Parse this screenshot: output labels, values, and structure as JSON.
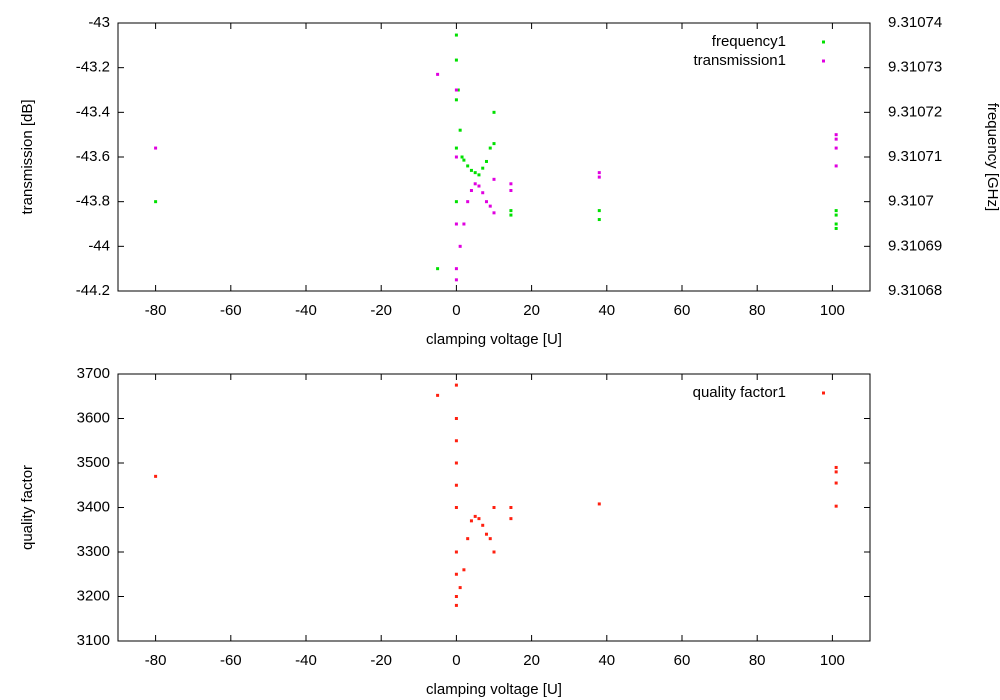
{
  "chart_data": [
    {
      "type": "scatter",
      "xlabel": "clamping voltage [U]",
      "ylabel": "transmission [dB]",
      "y2label": "frequency [GHz]",
      "xlim": [
        -90,
        110
      ],
      "xticks": [
        -80,
        -60,
        -40,
        -20,
        0,
        20,
        40,
        60,
        80,
        100
      ],
      "ylim": [
        -44.2,
        -43
      ],
      "yticks": [
        -44.2,
        -44,
        -43.8,
        -43.6,
        -43.4,
        -43.2,
        -43
      ],
      "y2lim": [
        9.31068,
        9.31074
      ],
      "y2ticks": [
        9.31068,
        9.31069,
        9.3107,
        9.31071,
        9.31072,
        9.31073,
        9.31074
      ],
      "legend": "upper right",
      "series": [
        {
          "name": "frequency1",
          "color": "#00e000",
          "axis": "y2",
          "x": [
            -80,
            -5,
            0,
            0,
            0,
            0,
            0,
            0.5,
            1,
            1.5,
            2,
            3,
            4,
            5,
            6,
            7,
            8,
            9,
            10,
            10,
            14.5,
            14.5,
            38,
            38,
            101,
            101,
            101,
            101
          ],
          "values": [
            9.3107,
            9.310685,
            9.3107373,
            9.3107317,
            9.3107228,
            9.310712,
            9.3107,
            9.310725,
            9.310716,
            9.31071,
            9.3107093,
            9.310708,
            9.310707,
            9.3107065,
            9.310706,
            9.3107075,
            9.310709,
            9.310712,
            9.31072,
            9.310713,
            9.310698,
            9.310697,
            9.310698,
            9.310696,
            9.310698,
            9.310697,
            9.310695,
            9.310694
          ]
        },
        {
          "name": "transmission1",
          "color": "#e000e0",
          "axis": "y",
          "x": [
            -80,
            -5,
            0,
            0,
            0,
            0,
            0,
            1,
            2,
            3,
            4,
            5,
            6,
            7,
            8,
            9,
            10,
            10,
            14.5,
            14.5,
            38,
            38,
            101,
            101,
            101,
            101
          ],
          "values": [
            -43.56,
            -43.23,
            -44.15,
            -44.1,
            -43.9,
            -43.6,
            -43.3,
            -44.0,
            -43.9,
            -43.8,
            -43.75,
            -43.72,
            -43.73,
            -43.76,
            -43.8,
            -43.82,
            -43.85,
            -43.7,
            -43.72,
            -43.75,
            -43.67,
            -43.69,
            -43.5,
            -43.52,
            -43.56,
            -43.64
          ]
        }
      ]
    },
    {
      "type": "scatter",
      "xlabel": "clamping voltage [U]",
      "ylabel": "quality factor",
      "xlim": [
        -90,
        110
      ],
      "xticks": [
        -80,
        -60,
        -40,
        -20,
        0,
        20,
        40,
        60,
        80,
        100
      ],
      "ylim": [
        3100,
        3700
      ],
      "yticks": [
        3100,
        3200,
        3300,
        3400,
        3500,
        3600,
        3700
      ],
      "legend": "upper right",
      "series": [
        {
          "name": "quality factor1",
          "color": "#ff2010",
          "axis": "y",
          "x": [
            -80,
            -5,
            0,
            0,
            0,
            0,
            0,
            0,
            0,
            0,
            0,
            0,
            1,
            2,
            3,
            4,
            5,
            6,
            7,
            8,
            9,
            10,
            10,
            14.5,
            14.5,
            38,
            101,
            101,
            101,
            101
          ],
          "values": [
            3470,
            3652,
            3675,
            3600,
            3550,
            3500,
            3450,
            3400,
            3300,
            3250,
            3200,
            3180,
            3220,
            3260,
            3330,
            3370,
            3380,
            3375,
            3360,
            3340,
            3330,
            3400,
            3300,
            3400,
            3375,
            3408,
            3490,
            3480,
            3455,
            3403
          ]
        }
      ]
    }
  ]
}
